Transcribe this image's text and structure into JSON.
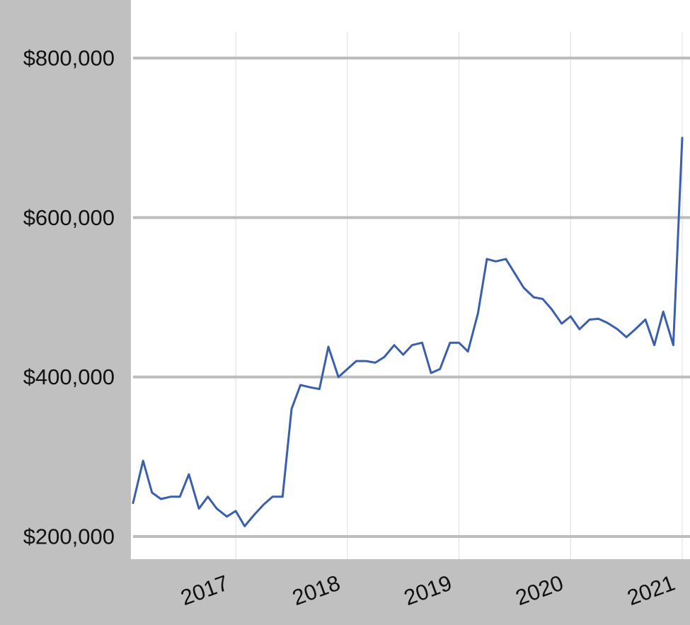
{
  "chart_data": {
    "type": "line",
    "title": "",
    "xlabel": "",
    "ylabel": "",
    "x_ticks": [
      "2017",
      "2018",
      "2019",
      "2020",
      "2021"
    ],
    "y_ticks": [
      {
        "value": 200000,
        "label": "$200,000"
      },
      {
        "value": 400000,
        "label": "$400,000"
      },
      {
        "value": 600000,
        "label": "$600,000"
      },
      {
        "value": 800000,
        "label": "$800,000"
      }
    ],
    "xlim": [
      2016.08,
      2021.0
    ],
    "ylim": [
      174000,
      870000
    ],
    "grid": {
      "horizontal": true,
      "vertical": true
    },
    "series": [
      {
        "color": "#3a5fad",
        "x": [
          2016.08,
          2016.17,
          2016.25,
          2016.33,
          2016.42,
          2016.5,
          2016.58,
          2016.67,
          2016.75,
          2016.83,
          2016.92,
          2017.0,
          2017.08,
          2017.17,
          2017.25,
          2017.33,
          2017.42,
          2017.5,
          2017.58,
          2017.67,
          2017.75,
          2017.83,
          2017.92,
          2018.0,
          2018.08,
          2018.17,
          2018.25,
          2018.33,
          2018.42,
          2018.5,
          2018.58,
          2018.67,
          2018.75,
          2018.83,
          2018.92,
          2019.0,
          2019.08,
          2019.17,
          2019.25,
          2019.33,
          2019.42,
          2019.5,
          2019.58,
          2019.67,
          2019.75,
          2019.83,
          2019.92,
          2020.0,
          2020.08,
          2020.17,
          2020.25,
          2020.33,
          2020.42,
          2020.5,
          2020.58,
          2020.67,
          2020.75,
          2020.83,
          2020.92,
          2021.0
        ],
        "values": [
          242000,
          295000,
          255000,
          247000,
          250000,
          250000,
          278000,
          235000,
          250000,
          235000,
          225000,
          232000,
          213000,
          228000,
          240000,
          250000,
          250000,
          360000,
          390000,
          387000,
          385000,
          438000,
          400000,
          410000,
          420000,
          420000,
          418000,
          425000,
          440000,
          428000,
          440000,
          443000,
          405000,
          410000,
          443000,
          443000,
          432000,
          480000,
          548000,
          545000,
          548000,
          530000,
          512000,
          500000,
          498000,
          485000,
          467000,
          476000,
          460000,
          472000,
          473000,
          468000,
          460000,
          450000,
          460000,
          472000,
          440000,
          482000,
          440000,
          700000
        ]
      }
    ]
  }
}
